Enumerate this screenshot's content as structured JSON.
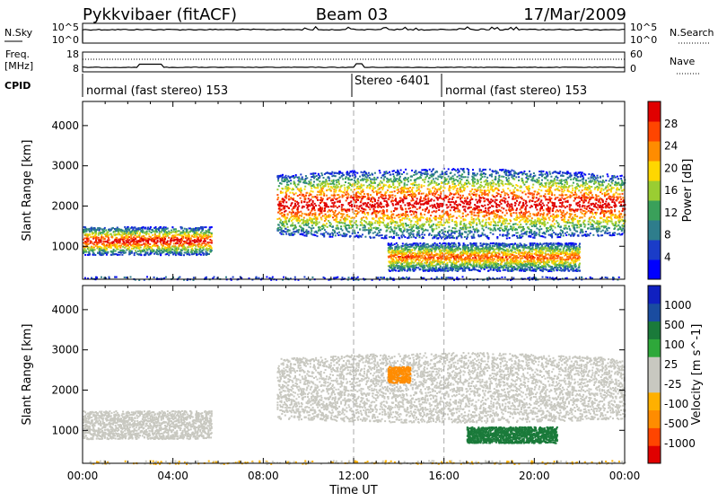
{
  "header": {
    "station": "Pykkvibaer (fitACF)",
    "beam": "Beam 03",
    "date": "17/Mar/2009"
  },
  "noise_panel": {
    "left_label": "N.Sky",
    "left_ticks": [
      "10^5",
      "10^0"
    ],
    "right_ticks": [
      "10^5",
      "10^0"
    ],
    "right_label": "N.Search"
  },
  "freq_panel": {
    "left_label_1": "Freq.",
    "left_label_2": "[MHz]",
    "left_ticks": [
      "18",
      "8"
    ],
    "right_ticks": [
      "60",
      "0"
    ],
    "right_label": "Nave"
  },
  "cpid": {
    "label": "CPID",
    "segments": [
      {
        "text": "normal (fast stereo) 153",
        "start_hour": 0
      },
      {
        "text": "Stereo -6401",
        "start_hour": 12
      },
      {
        "text": "normal (fast stereo) 153",
        "start_hour": 16
      }
    ]
  },
  "x_axis": {
    "label": "Time UT",
    "ticks": [
      "00:00",
      "04:00",
      "08:00",
      "12:00",
      "16:00",
      "20:00",
      "00:00"
    ]
  },
  "colors": {
    "power": [
      "#0000ff",
      "#1a3cc8",
      "#2e7d8c",
      "#3aa05a",
      "#9acd32",
      "#ffd700",
      "#ff8c00",
      "#ff4500",
      "#e00000"
    ],
    "velocity": [
      "#e00000",
      "#ff4500",
      "#ff8c00",
      "#ffb000",
      "#c8c8c0",
      "#c8c8c0",
      "#2ea83a",
      "#1a7a3a",
      "#1a4ca0",
      "#1020c0"
    ]
  },
  "chart_data": [
    {
      "type": "heatmap",
      "title": "",
      "xlabel": "Time UT",
      "ylabel": "Slant Range [km]",
      "xlim": [
        0,
        24
      ],
      "ylim": [
        180,
        4600
      ],
      "yticks": [
        "1000",
        "2000",
        "3000",
        "4000"
      ],
      "colorbar": {
        "label": "Power [dB]",
        "ticks": [
          "4",
          "8",
          "12",
          "16",
          "20",
          "24",
          "28"
        ],
        "range": [
          0,
          30
        ]
      },
      "echo_regions": [
        {
          "t0": 0.0,
          "t1": 5.7,
          "r_low": 800,
          "r_high": 1500,
          "peak_db": 26
        },
        {
          "t0": 8.6,
          "t1": 24.0,
          "r_low": 1300,
          "r_high": 3000,
          "peak_db": 28
        },
        {
          "t0": 13.5,
          "t1": 22.0,
          "r_low": 400,
          "r_high": 1100,
          "peak_db": 22
        }
      ]
    },
    {
      "type": "heatmap",
      "title": "",
      "xlabel": "Time UT",
      "ylabel": "Slant Range [km]",
      "xlim": [
        0,
        24
      ],
      "ylim": [
        180,
        4600
      ],
      "yticks": [
        "1000",
        "2000",
        "3000",
        "4000"
      ],
      "colorbar": {
        "label": "Velocity [m s^-1]",
        "ticks": [
          "1000",
          "500",
          "100",
          "25",
          "-25",
          "-100",
          "-500",
          "-1000"
        ],
        "range": [
          -1000,
          1000
        ]
      },
      "echo_regions": [
        {
          "t0": 0.0,
          "t1": 5.7,
          "r_low": 800,
          "r_high": 1500,
          "velocity": 0
        },
        {
          "t0": 8.6,
          "t1": 24.0,
          "r_low": 1300,
          "r_high": 3000,
          "velocity": 0
        },
        {
          "t0": 13.5,
          "t1": 14.5,
          "r_low": 2200,
          "r_high": 2600,
          "velocity": -150
        },
        {
          "t0": 17.0,
          "t1": 21.0,
          "r_low": 700,
          "r_high": 1100,
          "velocity": 300
        }
      ]
    }
  ]
}
